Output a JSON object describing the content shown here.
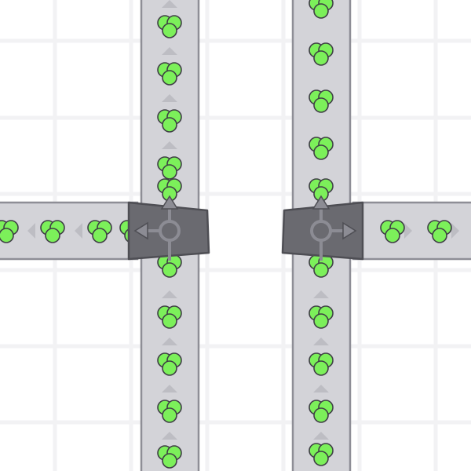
{
  "scene": {
    "colors": {
      "background": "#ffffff",
      "grid": "#f2f2f4",
      "belt": "#d3d3d8",
      "belt_border": "#8e8e96",
      "belt_arrow": "#bdbdc3",
      "splitter": "#6a6a70",
      "splitter_border": "#4e4e54",
      "splitter_symbol": "#8c8c94",
      "item_fill": "#7cf05a",
      "item_border": "#3f3f45"
    },
    "entities": [
      {
        "type": "vertical-belt",
        "direction": "up"
      },
      {
        "type": "vertical-belt",
        "direction": "up"
      },
      {
        "type": "horizontal-belt",
        "direction": "left"
      },
      {
        "type": "horizontal-belt",
        "direction": "right"
      },
      {
        "type": "splitter",
        "outputs": [
          "up",
          "left"
        ],
        "icon": "splitter-left-icon"
      },
      {
        "type": "splitter",
        "outputs": [
          "up",
          "right"
        ],
        "icon": "splitter-right-icon"
      }
    ],
    "item_shape": "green-circle-cluster"
  }
}
